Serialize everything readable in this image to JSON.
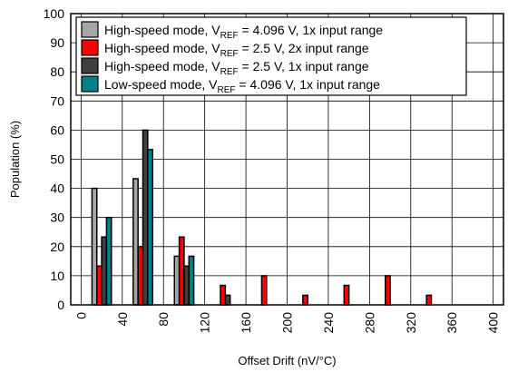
{
  "chart_data": {
    "type": "bar",
    "title": "",
    "xlabel": "Offset Drift (nV/°C)",
    "ylabel": "Population (%)",
    "ylim": [
      0,
      100
    ],
    "yticks": [
      0,
      10,
      20,
      30,
      40,
      50,
      60,
      70,
      80,
      90,
      100
    ],
    "xticks": [
      "0",
      "40",
      "80",
      "120",
      "160",
      "200",
      "240",
      "280",
      "320",
      "360",
      "400"
    ],
    "grid": true,
    "legend_position": "top-left",
    "bin_centers": [
      0,
      20,
      40,
      60,
      80,
      100,
      120,
      140,
      160,
      180,
      200,
      220,
      240,
      260,
      280,
      300,
      320,
      340,
      360,
      380,
      400
    ],
    "series": [
      {
        "name": "High-speed mode, VREF = 4.096 V, 1x input range",
        "label_main": "High-speed mode, V",
        "label_sub": "REF",
        "label_rest": " = 4.096 V, 1x input range",
        "color": "#a6a6a6",
        "values": [
          0,
          40,
          0,
          43.3,
          0,
          16.7,
          0,
          0,
          0,
          0,
          0,
          0,
          0,
          0,
          0,
          0,
          0,
          0,
          0,
          0,
          0
        ]
      },
      {
        "name": "High-speed mode, VREF = 2.5 V, 2x input range",
        "label_main": "High-speed mode, V",
        "label_sub": "REF",
        "label_rest": " = 2.5 V, 2x input range",
        "color": "#ff0000",
        "values": [
          0,
          13.3,
          0,
          20,
          0,
          23.3,
          0,
          6.7,
          0,
          10,
          0,
          3.3,
          0,
          6.7,
          0,
          10,
          0,
          3.3,
          0,
          0,
          0
        ]
      },
      {
        "name": "High-speed mode, VREF = 2.5 V, 1x input range",
        "label_main": "High-speed mode, V",
        "label_sub": "REF",
        "label_rest": " = 2.5 V, 1x input range",
        "color": "#404040",
        "values": [
          0,
          23.3,
          0,
          60,
          0,
          13.3,
          0,
          3.3,
          0,
          0,
          0,
          0,
          0,
          0,
          0,
          0,
          0,
          0,
          0,
          0,
          0
        ]
      },
      {
        "name": "Low-speed mode, VREF = 4.096 V, 1x input range",
        "label_main": "Low-speed mode, V",
        "label_sub": "REF",
        "label_rest": " = 4.096 V, 1x input range",
        "color": "#00808a",
        "values": [
          0,
          30,
          0,
          53.3,
          0,
          16.7,
          0,
          0,
          0,
          0,
          0,
          0,
          0,
          0,
          0,
          0,
          0,
          0,
          0,
          0,
          0
        ]
      }
    ]
  }
}
